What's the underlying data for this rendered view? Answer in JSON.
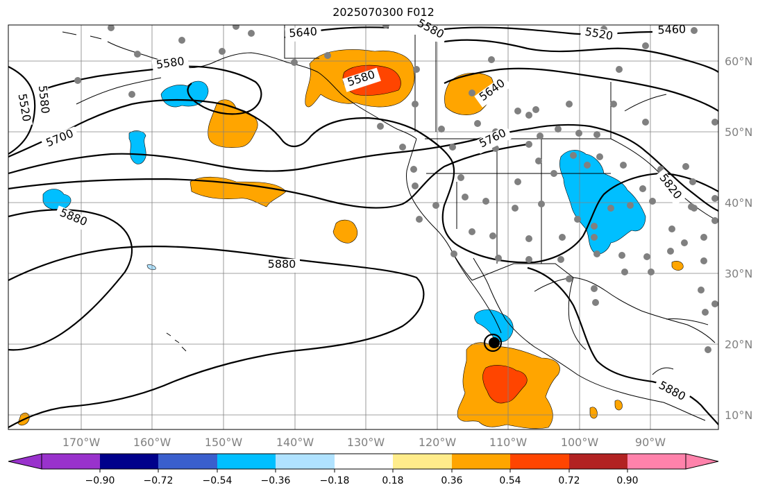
{
  "title": "2025070300 F012",
  "map": {
    "lat_labels": [
      "60°N",
      "50°N",
      "40°N",
      "30°N",
      "20°N",
      "10°N"
    ],
    "lon_labels": [
      "170°W",
      "160°W",
      "150°W",
      "140°W",
      "130°W",
      "120°W",
      "110°W",
      "100°W",
      "90°W"
    ],
    "contour_labels": [
      "5640",
      "5580",
      "5520",
      "5460",
      "5580",
      "5580",
      "5520",
      "5700",
      "5580",
      "5640",
      "5760",
      "5880",
      "5880",
      "5820",
      "5880"
    ],
    "colors": {
      "land_line": "#000000",
      "grid": "#808080",
      "station": "#808080"
    }
  },
  "colorbar": {
    "tick_labels": [
      "−0.90",
      "−0.72",
      "−0.54",
      "−0.36",
      "−0.18",
      "0.18",
      "0.36",
      "0.54",
      "0.72",
      "0.90"
    ],
    "colors": [
      "#9932CC",
      "#00008B",
      "#3A5FCD",
      "#00BFFF",
      "#B0E2FF",
      "#FFFFFF",
      "#FFEC8B",
      "#FFA500",
      "#FF4500",
      "#B22222",
      "#FF82AB"
    ]
  }
}
